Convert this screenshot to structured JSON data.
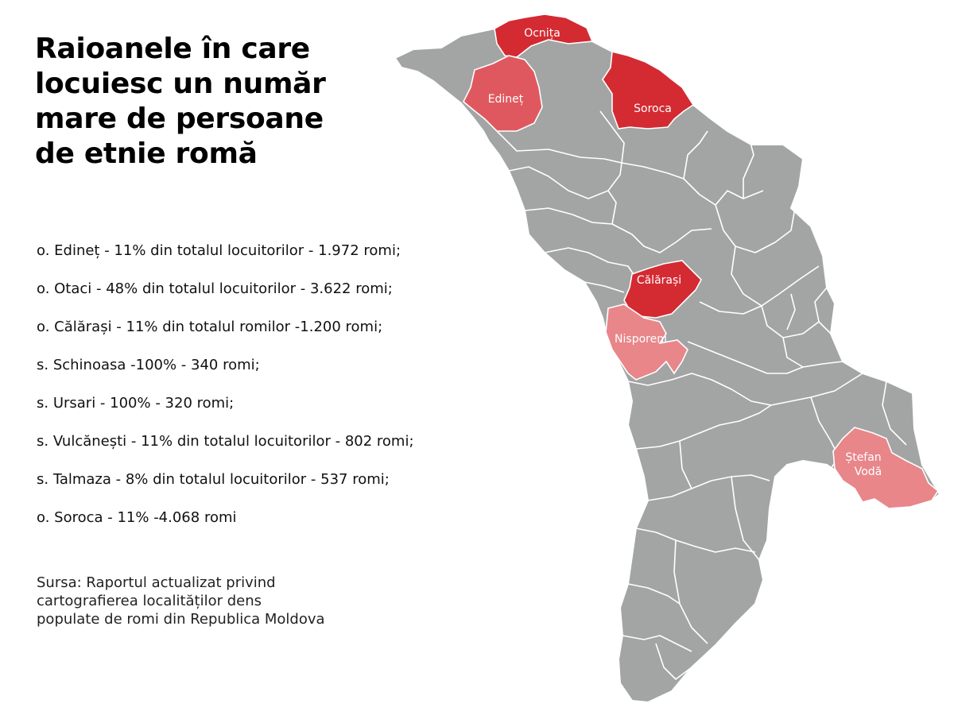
{
  "title_lines": [
    "Raioanele în care",
    "locuiesc un număr",
    "mare de persoane",
    "de etnie romă"
  ],
  "facts": [
    "o. Edineț - 11% din totalul locuitorilor - 1.972 romi;",
    "o. Otaci - 48% din totalul locuitorilor - 3.622 romi;",
    "o. Călărași - 11% din totalul romilor -1.200 romi;",
    "s. Schinoasa -100% - 340 romi;",
    "s. Ursari - 100% - 320 romi;",
    "s. Vulcănești - 11% din totalul locuitorilor - 802 romi;",
    "s. Talmaza - 8% din totalul locuitorilor - 537 romi;",
    "o. Soroca - 11% -4.068 romi"
  ],
  "source_lines": [
    "Sursa: Raportul actualizat privind",
    "cartografierea localităților dens",
    "populate de romi din Republica Moldova"
  ],
  "map": {
    "labels": {
      "ocnita": "Ocnița",
      "edinet": "Edineț",
      "soroca": "Soroca",
      "calarasi": "Călărași",
      "nisporeni": "Nisporeni",
      "stefan_voda_1": "Ștefan",
      "stefan_voda_2": "Vodă"
    },
    "colors": {
      "base": "#a3a5a5",
      "border": "#ffffff",
      "dark_red": "#d42a32",
      "mid_red": "#e0585f",
      "light_red": "#e8868a",
      "label": "#ffffff"
    }
  }
}
